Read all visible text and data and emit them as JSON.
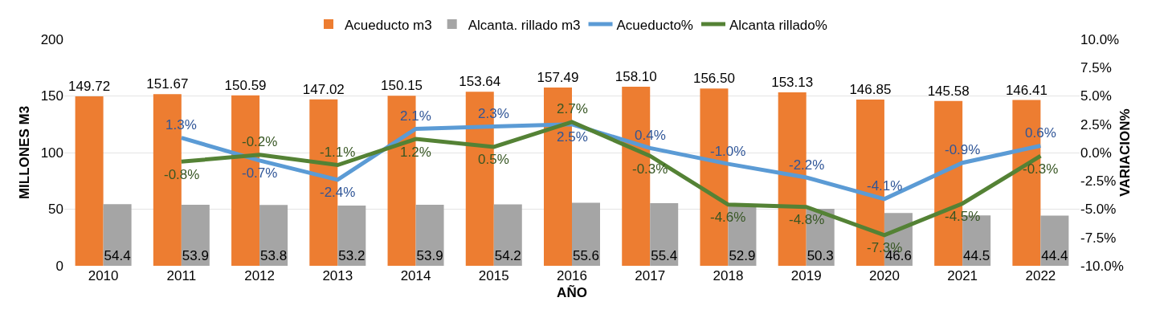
{
  "chart_data": {
    "type": "bar",
    "xlabel": "AÑO",
    "ylabel": "MILLONES M3",
    "y2label": "VARIACION%",
    "categories": [
      "2010",
      "2011",
      "2012",
      "2013",
      "2014",
      "2015",
      "2016",
      "2017",
      "2018",
      "2019",
      "2020",
      "2021",
      "2022"
    ],
    "series": [
      {
        "name": "Acueducto m3",
        "color": "#ed7d31",
        "values": [
          149.72,
          151.67,
          150.59,
          147.02,
          150.15,
          153.64,
          157.49,
          158.1,
          156.5,
          153.13,
          146.85,
          145.58,
          146.41
        ],
        "value_labels": [
          "149.72",
          "151.67",
          "150.59",
          "147.02",
          "150.15",
          "153.64",
          "157.49",
          "158.10",
          "156.50",
          "153.13",
          "146.85",
          "145.58",
          "146.41"
        ]
      },
      {
        "name": "Alcanta. rillado m3",
        "color": "#a5a5a5",
        "values": [
          54.4,
          53.9,
          53.8,
          53.2,
          53.9,
          54.2,
          55.6,
          55.4,
          52.9,
          50.3,
          46.6,
          44.5,
          44.4
        ],
        "value_labels": [
          "54.4",
          "53.9",
          "53.8",
          "53.2",
          "53.9",
          "54.2",
          "55.6",
          "55.4",
          "52.9",
          "50.3",
          "46.6",
          "44.5",
          "44.4"
        ]
      },
      {
        "name": "Acueducto%",
        "type": "line",
        "axis": "y2",
        "color": "#5b9bd5",
        "values": [
          null,
          1.3,
          -0.7,
          -2.4,
          2.1,
          2.3,
          2.5,
          0.4,
          -1.0,
          -2.2,
          -4.1,
          -0.9,
          0.6
        ],
        "value_labels": [
          null,
          "1.3%",
          "-0.7%",
          "-2.4%",
          "2.1%",
          "2.3%",
          "2.5%",
          "0.4%",
          "-1.0%",
          "-2.2%",
          "-4.1%",
          "-0.9%",
          "0.6%"
        ]
      },
      {
        "name": "Alcanta rillado%",
        "type": "line",
        "axis": "y2",
        "color": "#548235",
        "values": [
          null,
          -0.8,
          -0.2,
          -1.1,
          1.2,
          0.5,
          2.7,
          -0.3,
          -4.6,
          -4.8,
          -7.3,
          -4.5,
          -0.3
        ],
        "value_labels": [
          null,
          "-0.8%",
          "-0.2%",
          "-1.1%",
          "1.2%",
          "0.5%",
          "2.7%",
          "-0.3%",
          "-4.6%",
          "-4.8%",
          "-7.3%",
          "-4.5%",
          "-0.3%"
        ]
      }
    ],
    "ylim": [
      0,
      200
    ],
    "yticks": [
      0,
      50,
      100,
      150,
      200
    ],
    "y2lim": [
      -10,
      10
    ],
    "y2ticks": [
      {
        "value": -10,
        "label": "-10.0%"
      },
      {
        "value": -7.5,
        "label": "-7.5%"
      },
      {
        "value": -5,
        "label": "-5.0%"
      },
      {
        "value": -2.5,
        "label": "-2.5%"
      },
      {
        "value": 0,
        "label": "0.0%"
      },
      {
        "value": 2.5,
        "label": "2.5%"
      },
      {
        "value": 5,
        "label": "5.0%"
      },
      {
        "value": 7.5,
        "label": "7.5%"
      },
      {
        "value": 10,
        "label": "10.0%"
      }
    ],
    "grid": "y",
    "legend": "top",
    "marker": "none"
  }
}
